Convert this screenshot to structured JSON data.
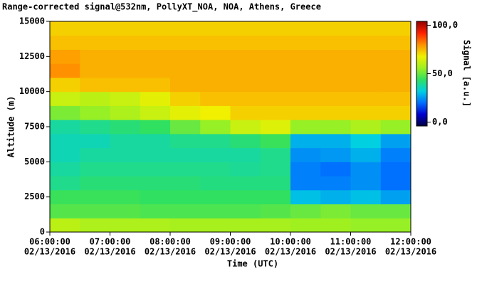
{
  "chart_data": {
    "type": "heatmap",
    "title": "Range-corrected signal@532nm, PollyXT_NOA, NOA, Athens, Greece",
    "xlabel": "Time (UTC)",
    "ylabel": "Altitude (m)",
    "colorbar_label": "Signal [a.u.]",
    "xlim": [
      6,
      12
    ],
    "xticks": [
      {
        "value": 6,
        "label": "06:00:00",
        "date": "02/13/2016"
      },
      {
        "value": 7,
        "label": "07:00:00",
        "date": "02/13/2016"
      },
      {
        "value": 8,
        "label": "08:00:00",
        "date": "02/13/2016"
      },
      {
        "value": 9,
        "label": "09:00:00",
        "date": "02/13/2016"
      },
      {
        "value": 10,
        "label": "10:00:00",
        "date": "02/13/2016"
      },
      {
        "value": 11,
        "label": "11:00:00",
        "date": "02/13/2016"
      },
      {
        "value": 12,
        "label": "12:00:00",
        "date": "02/13/2016"
      }
    ],
    "ylim": [
      0,
      15000
    ],
    "yticks": [
      0,
      2500,
      5000,
      7500,
      10000,
      12500,
      15000
    ],
    "clim": [
      -4,
      104
    ],
    "cticks": [
      {
        "value": 0,
        "label": "0,0"
      },
      {
        "value": 50,
        "label": "50,0"
      },
      {
        "value": 100,
        "label": "100,0"
      }
    ],
    "colorscale": [
      "#000040",
      "#0000d0",
      "#0070ff",
      "#00d0e0",
      "#30e060",
      "#a0f020",
      "#f0f000",
      "#ff9000",
      "#ff2000",
      "#900000"
    ],
    "x": [
      6.25,
      6.75,
      7.25,
      7.75,
      8.25,
      8.75,
      9.25,
      9.75,
      10.25,
      10.75,
      11.25,
      11.75
    ],
    "y": [
      500,
      1500,
      2500,
      3500,
      4500,
      5500,
      6500,
      7500,
      8500,
      9500,
      10500,
      11500,
      12500,
      13500,
      14500
    ],
    "z": [
      [
        60,
        58,
        58,
        58,
        57,
        57,
        57,
        57,
        56,
        56,
        55,
        55
      ],
      [
        48,
        48,
        48,
        47,
        47,
        47,
        47,
        48,
        50,
        52,
        50,
        50
      ],
      [
        45,
        45,
        45,
        44,
        44,
        44,
        44,
        44,
        30,
        28,
        30,
        26
      ],
      [
        40,
        42,
        42,
        42,
        42,
        41,
        41,
        41,
        22,
        22,
        24,
        20
      ],
      [
        38,
        40,
        40,
        40,
        40,
        40,
        39,
        40,
        22,
        20,
        24,
        20
      ],
      [
        36,
        38,
        38,
        38,
        38,
        38,
        38,
        40,
        24,
        25,
        28,
        22
      ],
      [
        36,
        36,
        38,
        38,
        40,
        40,
        42,
        45,
        28,
        28,
        32,
        26
      ],
      [
        38,
        40,
        42,
        44,
        50,
        55,
        62,
        65,
        55,
        55,
        58,
        55
      ],
      [
        52,
        55,
        58,
        62,
        66,
        68,
        72,
        72,
        72,
        72,
        72,
        72
      ],
      [
        62,
        60,
        62,
        66,
        72,
        74,
        74,
        74,
        74,
        74,
        74,
        74
      ],
      [
        72,
        74,
        74,
        74,
        76,
        76,
        76,
        76,
        76,
        76,
        76,
        76
      ],
      [
        80,
        76,
        76,
        76,
        76,
        76,
        76,
        76,
        76,
        76,
        76,
        76
      ],
      [
        78,
        76,
        76,
        76,
        76,
        76,
        76,
        76,
        76,
        76,
        76,
        76
      ],
      [
        74,
        74,
        74,
        74,
        74,
        74,
        74,
        74,
        74,
        74,
        74,
        74
      ],
      [
        72,
        72,
        72,
        72,
        72,
        72,
        72,
        72,
        72,
        72,
        72,
        72
      ]
    ]
  }
}
